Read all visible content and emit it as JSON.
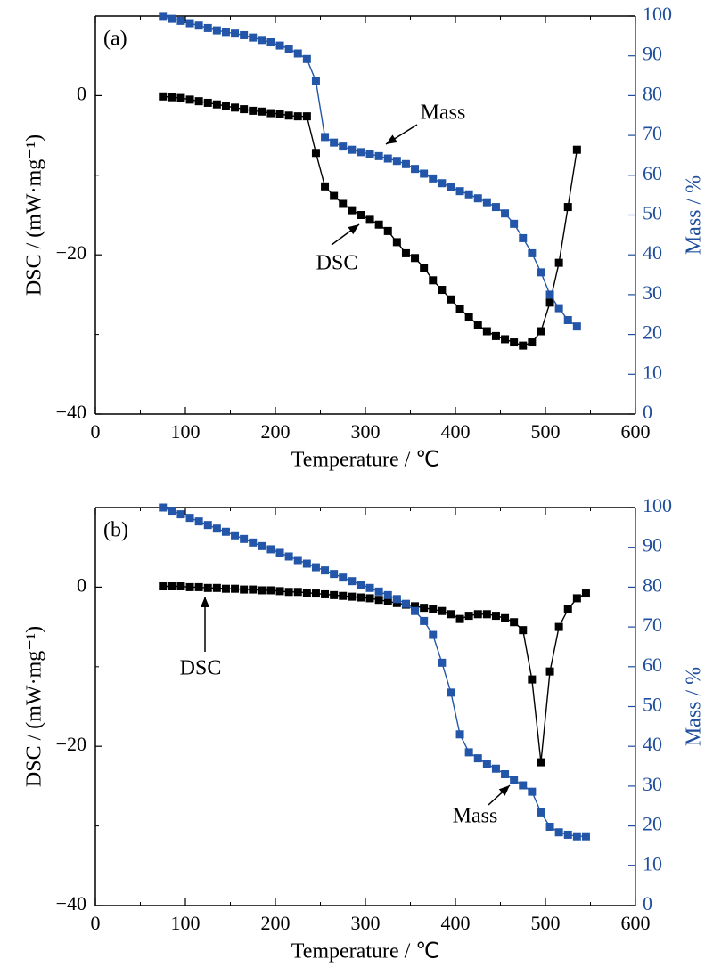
{
  "chart_data": [
    {
      "type": "line",
      "panel_label": "(a)",
      "xlabel": "Temperature / ℃",
      "ylabel": "DSC / (mW·mg⁻¹)",
      "y2label": "Mass / %",
      "xlim": [
        0,
        600
      ],
      "xticks": [
        0,
        100,
        200,
        300,
        400,
        500,
        600
      ],
      "ylim": [
        -40,
        10
      ],
      "yticks": [
        {
          "value": -40,
          "label": "−40"
        },
        {
          "value": -20,
          "label": "−20"
        },
        0
      ],
      "y2lim": [
        0,
        100
      ],
      "y2ticks": [
        0,
        10,
        20,
        30,
        40,
        50,
        60,
        70,
        80,
        90,
        100
      ],
      "x": [
        75,
        85,
        95,
        105,
        115,
        125,
        135,
        145,
        155,
        165,
        175,
        185,
        195,
        205,
        215,
        225,
        235,
        245,
        255,
        265,
        275,
        285,
        295,
        305,
        315,
        325,
        335,
        345,
        355,
        365,
        375,
        385,
        395,
        405,
        415,
        425,
        435,
        445,
        455,
        465,
        475,
        485,
        495,
        505,
        515,
        525,
        535
      ],
      "series": [
        {
          "name": "DSC",
          "color": "#000000",
          "values": [
            -0.1,
            -0.2,
            -0.3,
            -0.5,
            -0.7,
            -0.9,
            -1.1,
            -1.3,
            -1.5,
            -1.7,
            -1.9,
            -2.0,
            -2.2,
            -2.3,
            -2.5,
            -2.6,
            -2.6,
            -7.2,
            -11.4,
            -12.6,
            -13.6,
            -14.4,
            -15.0,
            -15.6,
            -16.2,
            -17.0,
            -18.4,
            -19.8,
            -20.4,
            -21.6,
            -23.2,
            -24.4,
            -25.6,
            -26.8,
            -27.8,
            -28.8,
            -29.6,
            -30.2,
            -30.6,
            -31.0,
            -31.4,
            -31.0,
            -29.6,
            -26.0,
            -21.0,
            -14.0,
            -6.8
          ]
        },
        {
          "name": "Mass",
          "color": "#2356a8",
          "axis": "y2",
          "values": [
            99.8,
            99.3,
            98.8,
            98.2,
            97.6,
            97.0,
            96.4,
            96.0,
            95.6,
            95.2,
            94.6,
            94.0,
            93.4,
            92.6,
            91.8,
            90.6,
            89.2,
            83.6,
            69.6,
            68.2,
            67.2,
            66.4,
            65.8,
            65.3,
            64.8,
            64.2,
            63.6,
            62.8,
            61.6,
            60.4,
            59.2,
            58.0,
            57.0,
            56.0,
            55.2,
            54.2,
            53.2,
            52.0,
            50.4,
            47.8,
            44.2,
            40.4,
            35.6,
            30.0,
            26.6,
            23.6,
            22.0
          ]
        }
      ],
      "annotations": [
        "Mass",
        "DSC"
      ]
    },
    {
      "type": "line",
      "panel_label": "(b)",
      "xlabel": "Temperature / ℃",
      "ylabel": "DSC / (mW·mg⁻¹)",
      "y2label": "Mass / %",
      "xlim": [
        0,
        600
      ],
      "xticks": [
        0,
        100,
        200,
        300,
        400,
        500,
        600
      ],
      "ylim": [
        -40,
        10
      ],
      "yticks": [
        {
          "value": -40,
          "label": "−40"
        },
        {
          "value": -20,
          "label": "−20"
        },
        0
      ],
      "y2lim": [
        0,
        100
      ],
      "y2ticks": [
        0,
        10,
        20,
        30,
        40,
        50,
        60,
        70,
        80,
        90,
        100
      ],
      "x": [
        75,
        85,
        95,
        105,
        115,
        125,
        135,
        145,
        155,
        165,
        175,
        185,
        195,
        205,
        215,
        225,
        235,
        245,
        255,
        265,
        275,
        285,
        295,
        305,
        315,
        325,
        335,
        345,
        355,
        365,
        375,
        385,
        395,
        405,
        415,
        425,
        435,
        445,
        455,
        465,
        475,
        485,
        495,
        505,
        515,
        525,
        535,
        545
      ],
      "series": [
        {
          "name": "DSC",
          "color": "#000000",
          "values": [
            0.1,
            0.1,
            0.1,
            0.0,
            0.0,
            -0.1,
            -0.1,
            -0.2,
            -0.2,
            -0.3,
            -0.3,
            -0.4,
            -0.4,
            -0.5,
            -0.6,
            -0.6,
            -0.7,
            -0.8,
            -0.9,
            -1.0,
            -1.1,
            -1.2,
            -1.3,
            -1.4,
            -1.6,
            -1.8,
            -2.0,
            -2.2,
            -2.4,
            -2.6,
            -2.8,
            -3.0,
            -3.4,
            -4.0,
            -3.6,
            -3.4,
            -3.4,
            -3.6,
            -3.9,
            -4.4,
            -5.4,
            -11.6,
            -22.0,
            -10.6,
            -5.0,
            -2.8,
            -1.4,
            -0.8
          ]
        },
        {
          "name": "Mass",
          "color": "#2356a8",
          "axis": "y2",
          "values": [
            100,
            99.2,
            98.3,
            97.4,
            96.5,
            95.6,
            94.7,
            93.9,
            93.0,
            92.1,
            91.2,
            90.3,
            89.5,
            88.6,
            87.7,
            86.8,
            85.9,
            85.0,
            84.2,
            83.3,
            82.4,
            81.5,
            80.6,
            79.8,
            78.9,
            78.0,
            77,
            75.8,
            74,
            71.5,
            68,
            61,
            53.5,
            43,
            38.5,
            37,
            35.6,
            34.4,
            33,
            31.6,
            30.2,
            28.6,
            23.4,
            19.8,
            18.4,
            17.8,
            17.4,
            17.4
          ]
        }
      ],
      "annotations": [
        "DSC",
        "Mass"
      ]
    }
  ]
}
